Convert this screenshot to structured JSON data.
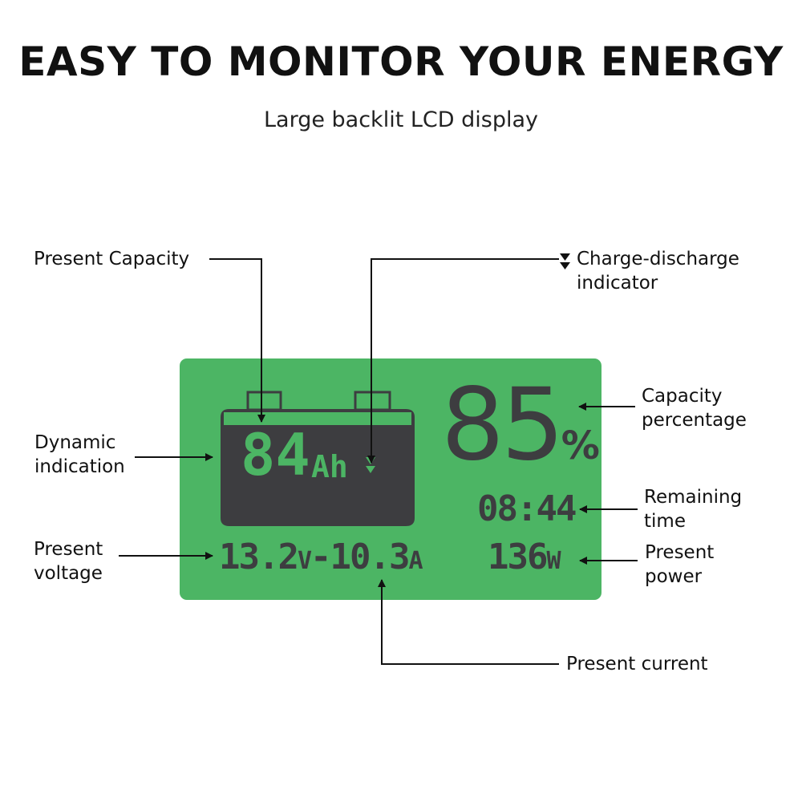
{
  "header": {
    "title": "EASY TO MONITOR YOUR ENERGY",
    "subtitle": "Large backlit LCD display"
  },
  "colors": {
    "lcd_background": "#4cb564",
    "lcd_foreground": "#3d3d40",
    "text": "#111111"
  },
  "display": {
    "capacity_value": "84",
    "capacity_unit": "Ah",
    "charge_indicator_icon": "double-down-triangle-icon",
    "percentage_value": "85",
    "percentage_unit": "%",
    "remaining_time": "08:44",
    "voltage_value": "13.2",
    "voltage_unit": "V",
    "separator": "-",
    "current_value": "10.3",
    "current_unit": "A",
    "power_value": "136",
    "power_unit": "W"
  },
  "labels": {
    "present_capacity": "Present Capacity",
    "charge_discharge_1": "Charge-discharge",
    "charge_discharge_2": "indicator",
    "capacity_percentage_1": "Capacity",
    "capacity_percentage_2": "percentage",
    "dynamic_indication_1": "Dynamic",
    "dynamic_indication_2": "indication",
    "remaining_time_1": "Remaining",
    "remaining_time_2": "time",
    "present_voltage_1": "Present",
    "present_voltage_2": "voltage",
    "present_power_1": "Present",
    "present_power_2": "power",
    "present_current": "Present current"
  }
}
